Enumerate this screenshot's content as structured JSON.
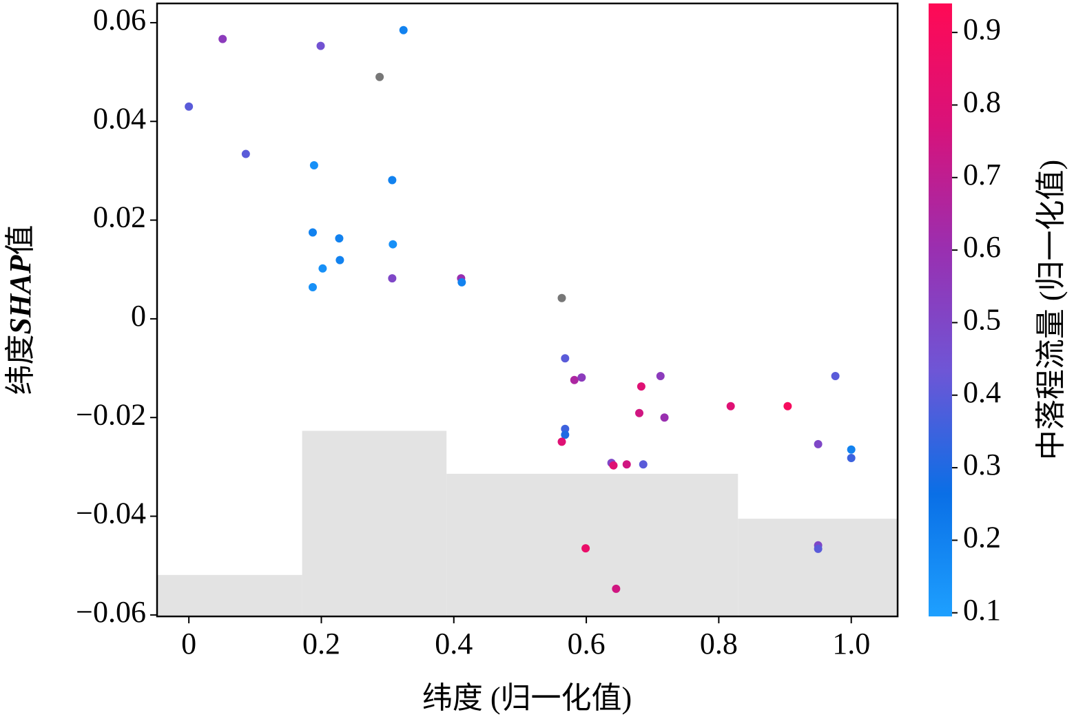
{
  "chart_data": {
    "type": "scatter",
    "xlabel": "纬度 (归一化值)",
    "ylabel_parts": [
      "纬度",
      "SHAP",
      "值"
    ],
    "colorbar_label": "中落程流量 (归一化值)",
    "xlim": [
      -0.048,
      1.07
    ],
    "ylim": [
      -0.0603,
      0.0639
    ],
    "xticks": [
      0,
      0.2,
      0.4,
      0.6,
      0.8,
      {
        "value": 1.0,
        "label": "1.0"
      }
    ],
    "yticks": [
      {
        "value": -0.06,
        "label": "−0.06"
      },
      {
        "value": -0.04,
        "label": "−0.04"
      },
      {
        "value": -0.02,
        "label": "−0.02"
      },
      0,
      0.02,
      0.04,
      0.06
    ],
    "clim": [
      0.095,
      0.94
    ],
    "cticks": [
      0.1,
      0.2,
      0.3,
      0.4,
      0.5,
      0.6,
      0.7,
      0.8,
      0.9
    ],
    "colormap": [
      "#1ea0ff",
      "#0a6fe6",
      "#6e56d6",
      "#9a2fb0",
      "#d8127a",
      "#ff0a55"
    ],
    "missing_color": "#777777",
    "histogram": {
      "bins": [
        -0.048,
        0.171,
        0.389,
        0.829,
        1.07
      ],
      "tops": [
        -0.0519,
        -0.0227,
        -0.0314,
        -0.0405
      ],
      "color": "#e3e3e3"
    },
    "x": [
      0,
      0.051,
      0.199,
      0.324,
      0.288,
      0.086,
      0.189,
      0.307,
      0.187,
      0.227,
      0.308,
      0.202,
      0.228,
      0.187,
      0.307,
      0.411,
      0.412,
      0.563,
      0.568,
      0.582,
      0.593,
      0.683,
      0.712,
      0.976,
      0.68,
      0.718,
      0.818,
      0.904,
      0.568,
      0.568,
      0.563,
      0.95,
      1.0,
      1.0,
      0.638,
      0.641,
      0.661,
      0.686,
      0.599,
      0.95,
      0.95,
      0.645
    ],
    "values": [
      0.043,
      0.0567,
      0.0553,
      0.0585,
      0.049,
      0.0334,
      0.0311,
      0.0281,
      0.0175,
      0.0163,
      0.0151,
      0.0102,
      0.0119,
      0.0064,
      0.0082,
      0.0082,
      0.0074,
      0.0042,
      -0.008,
      -0.0124,
      -0.0119,
      -0.0137,
      -0.0116,
      -0.0116,
      -0.0191,
      -0.02,
      -0.0177,
      -0.0177,
      -0.0223,
      -0.0235,
      -0.0249,
      -0.0254,
      -0.0265,
      -0.0282,
      -0.0292,
      -0.0297,
      -0.0295,
      -0.0295,
      -0.0465,
      -0.0459,
      -0.0466,
      -0.0547
    ],
    "color_values": [
      0.4,
      0.55,
      0.45,
      0.2,
      null,
      0.4,
      0.15,
      0.2,
      0.2,
      0.2,
      0.15,
      0.15,
      0.2,
      0.15,
      0.5,
      0.6,
      0.2,
      null,
      0.4,
      0.65,
      0.55,
      0.8,
      0.55,
      0.4,
      0.75,
      0.6,
      0.8,
      0.9,
      0.35,
      0.3,
      0.8,
      0.5,
      0.2,
      0.35,
      0.5,
      0.8,
      0.75,
      0.4,
      0.85,
      0.5,
      0.4,
      0.75
    ]
  }
}
